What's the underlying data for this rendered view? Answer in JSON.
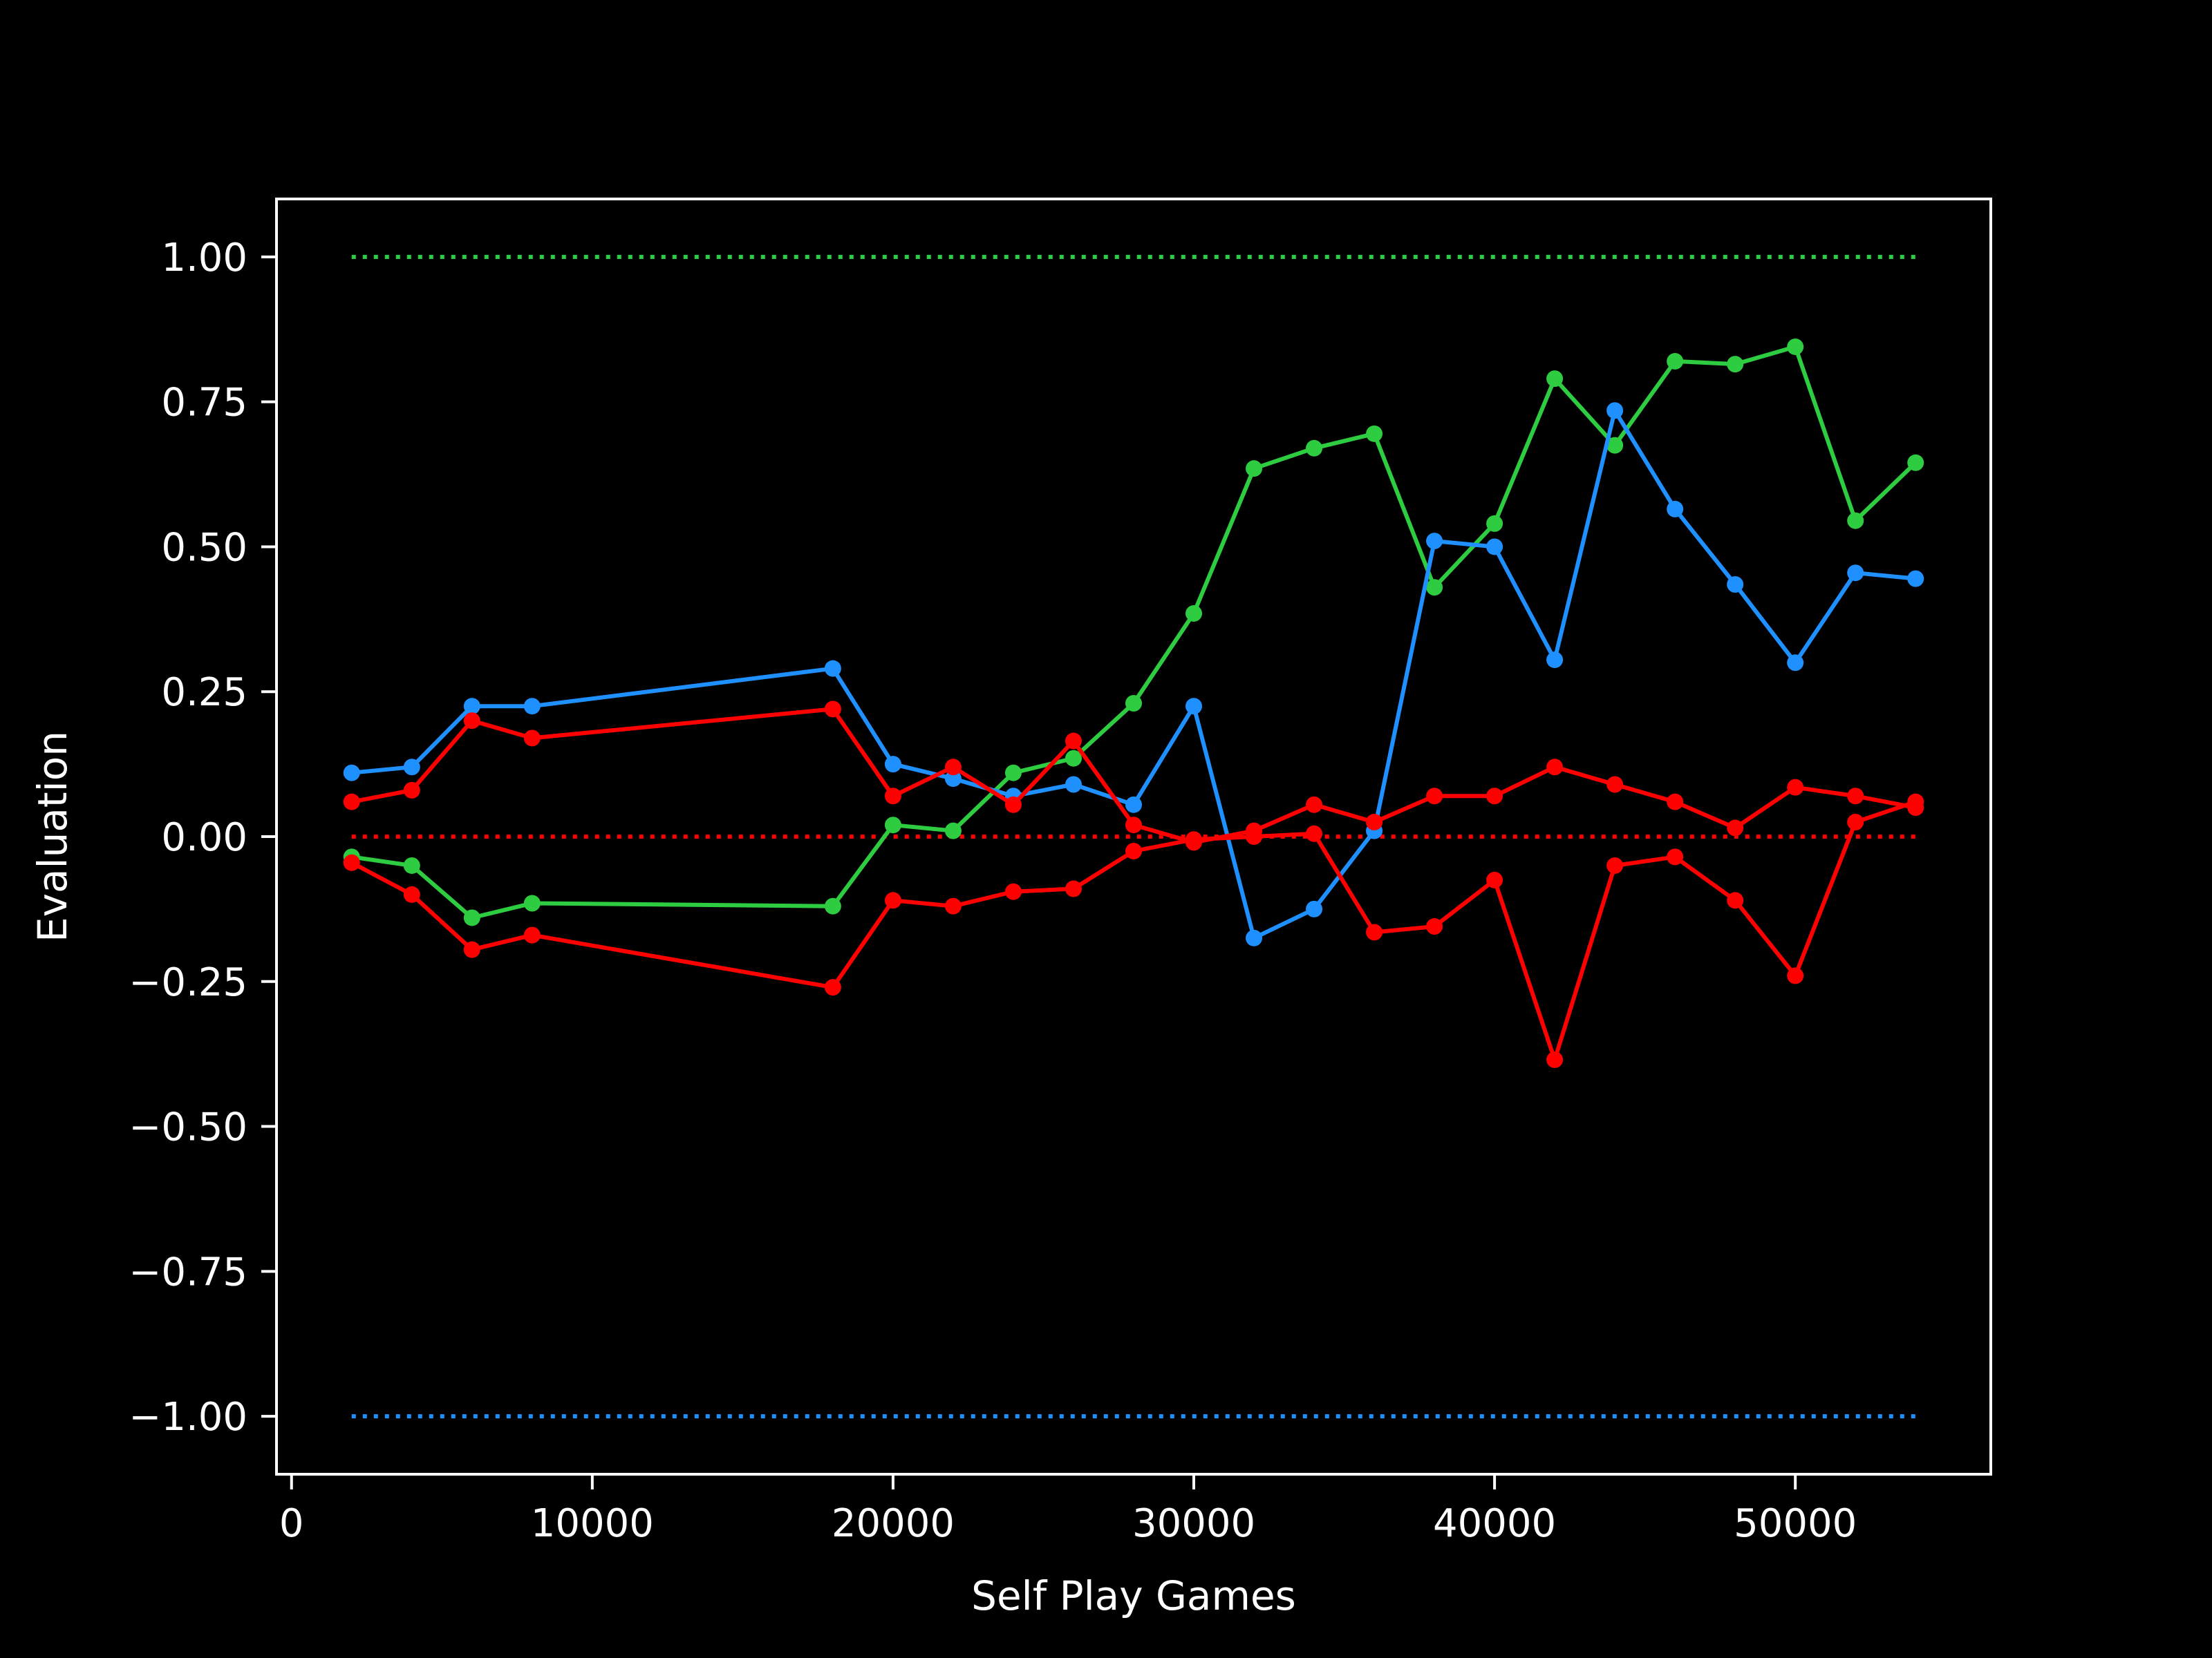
{
  "chart_data": {
    "type": "line",
    "title": "",
    "xlabel": "Self Play Games",
    "ylabel": "Evaluation",
    "xlim": [
      -500,
      56500
    ],
    "ylim": [
      -1.1,
      1.1
    ],
    "x_ticks": [
      0,
      10000,
      20000,
      30000,
      40000,
      50000
    ],
    "x_tick_labels": [
      "0",
      "10000",
      "20000",
      "30000",
      "40000",
      "50000"
    ],
    "y_ticks": [
      -1.0,
      -0.75,
      -0.5,
      -0.25,
      0.0,
      0.25,
      0.5,
      0.75,
      1.0
    ],
    "y_tick_labels": [
      "−1.00",
      "−0.75",
      "−0.50",
      "−0.25",
      "0.00",
      "0.25",
      "0.50",
      "0.75",
      "1.00"
    ],
    "grid": false,
    "legend": "none",
    "x": [
      2000,
      4000,
      6000,
      8000,
      18000,
      20000,
      22000,
      24000,
      26000,
      28000,
      30000,
      32000,
      34000,
      36000,
      38000,
      40000,
      42000,
      44000,
      46000,
      48000,
      50000,
      52000,
      54000
    ],
    "series": [
      {
        "color": "#2ecc40",
        "style": "solid",
        "values": [
          -0.035,
          -0.05,
          -0.14,
          -0.115,
          -0.12,
          0.02,
          0.01,
          0.11,
          0.135,
          0.23,
          0.385,
          0.635,
          0.67,
          0.695,
          0.43,
          0.54,
          0.79,
          0.675,
          0.82,
          0.815,
          0.845,
          0.545,
          0.645
        ]
      },
      {
        "color": "#1e90ff",
        "style": "solid",
        "values": [
          0.11,
          0.12,
          0.225,
          0.225,
          0.29,
          0.125,
          0.1,
          0.07,
          0.09,
          0.055,
          0.225,
          -0.175,
          -0.125,
          0.01,
          0.51,
          0.5,
          0.305,
          0.735,
          0.565,
          0.435,
          0.3,
          0.455,
          0.445
        ]
      },
      {
        "color": "#ff0000",
        "style": "solid",
        "values": [
          0.06,
          0.08,
          0.2,
          0.17,
          0.22,
          0.07,
          0.12,
          0.055,
          0.165,
          0.02,
          -0.01,
          0.01,
          0.055,
          0.025,
          0.07,
          0.07,
          0.12,
          0.09,
          0.06,
          0.015,
          0.085,
          0.07,
          0.05
        ]
      },
      {
        "color": "#ff0000",
        "style": "solid",
        "values": [
          -0.045,
          -0.1,
          -0.195,
          -0.17,
          -0.26,
          -0.11,
          -0.12,
          -0.095,
          -0.09,
          -0.025,
          -0.005,
          0.0,
          0.005,
          -0.165,
          -0.155,
          -0.075,
          -0.385,
          -0.05,
          -0.035,
          -0.11,
          -0.24,
          0.025,
          0.06
        ]
      }
    ],
    "reference_lines": [
      {
        "y": 1.0,
        "x_range": [
          2000,
          54000
        ],
        "color": "#2ecc40",
        "style": "dotted"
      },
      {
        "y": 0.0,
        "x_range": [
          2000,
          54000
        ],
        "color": "#ff0000",
        "style": "dotted"
      },
      {
        "y": -1.0,
        "x_range": [
          2000,
          54000
        ],
        "color": "#1e90ff",
        "style": "dotted"
      }
    ],
    "colors": {
      "background": "#000000",
      "axes": "#ffffff",
      "text": "#ffffff"
    }
  }
}
